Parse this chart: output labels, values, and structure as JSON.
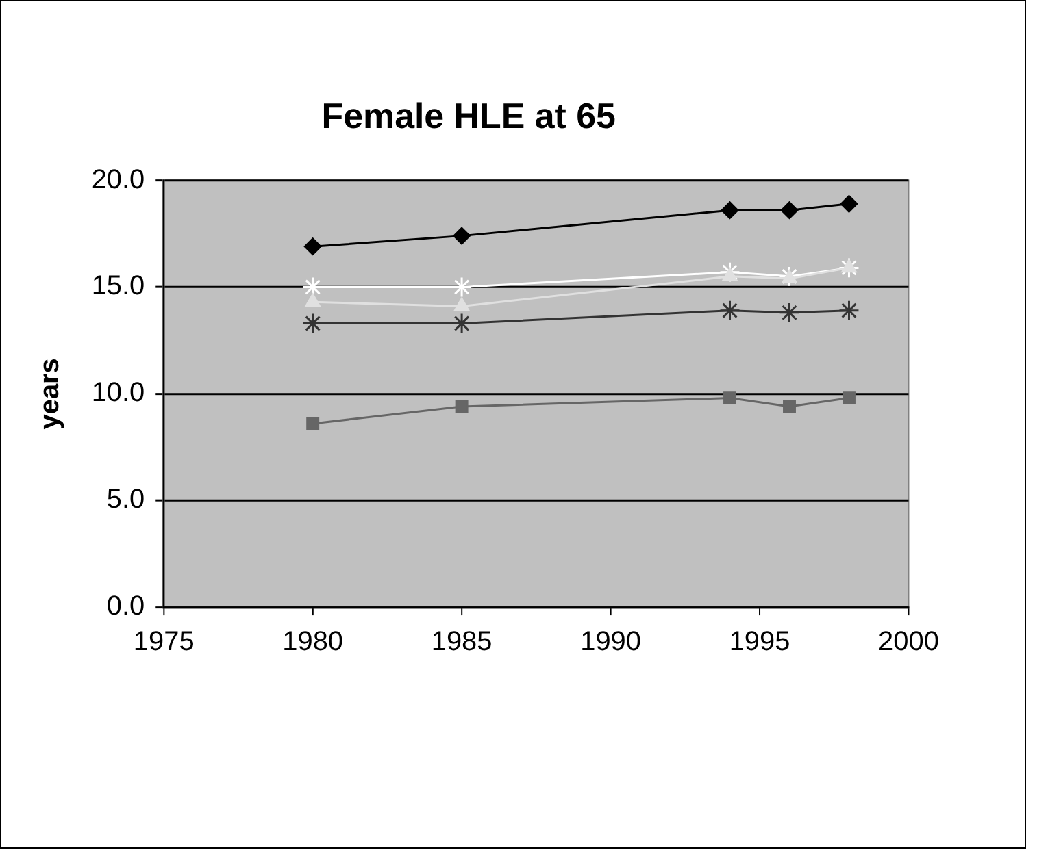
{
  "chart_data": {
    "type": "line",
    "title": "Female HLE at 65",
    "ylabel": "years",
    "x": [
      1980,
      1985,
      1994,
      1996,
      1998
    ],
    "series": [
      {
        "color": "#000000",
        "marker": "diamond",
        "values": [
          16.9,
          17.4,
          18.6,
          18.6,
          18.9
        ]
      },
      {
        "color": "#e0e0e0",
        "marker": "triangle",
        "values": [
          14.3,
          14.1,
          15.5,
          15.4,
          15.9
        ]
      },
      {
        "color": "#ffffff",
        "marker": "cross",
        "values": [
          15.0,
          15.0,
          15.7,
          15.5,
          15.9
        ]
      },
      {
        "color": "#333333",
        "marker": "cross",
        "values": [
          13.3,
          13.3,
          13.9,
          13.8,
          13.9
        ]
      },
      {
        "color": "#666666",
        "marker": "square",
        "values": [
          8.6,
          9.4,
          9.8,
          9.4,
          9.8
        ]
      }
    ],
    "xlim": [
      1975,
      2000
    ],
    "xticks": [
      1975,
      1980,
      1985,
      1990,
      1995,
      2000
    ],
    "ylim": [
      0,
      20
    ],
    "yticks": [
      {
        "value": 0,
        "label": "0.0"
      },
      {
        "value": 5,
        "label": "5.0"
      },
      {
        "value": 10,
        "label": "10.0"
      },
      {
        "value": 15,
        "label": "15.0"
      },
      {
        "value": 20,
        "label": "20.0"
      }
    ],
    "grid": "y",
    "legend": false
  }
}
